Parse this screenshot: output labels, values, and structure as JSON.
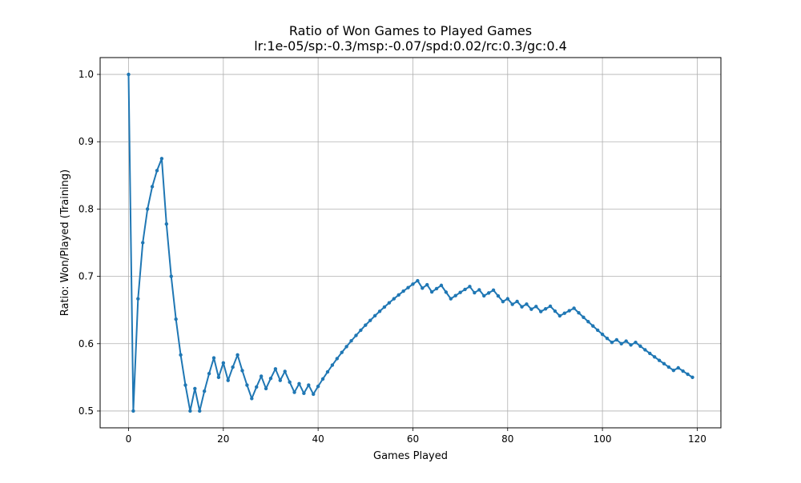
{
  "chart_data": {
    "type": "line",
    "title": "Ratio of Won Games to Played Games",
    "subtitle": "lr:1e-05/sp:-0.3/msp:-0.07/spd:0.02/rc:0.3/gc:0.4",
    "xlabel": "Games Played",
    "ylabel": "Ratio: Won/Played (Training)",
    "xlim": [
      -6,
      125
    ],
    "ylim": [
      0.475,
      1.025
    ],
    "xticks": [
      0,
      20,
      40,
      60,
      80,
      100,
      120
    ],
    "yticks": [
      0.5,
      0.6,
      0.7,
      0.8,
      0.9,
      1.0
    ],
    "xtick_labels": [
      "0",
      "20",
      "40",
      "60",
      "80",
      "100",
      "120"
    ],
    "ytick_labels": [
      "0.5",
      "0.6",
      "0.7",
      "0.8",
      "0.9",
      "1.0"
    ],
    "grid": true,
    "line_color": "#1f77b4",
    "grid_color": "#b0b0b0",
    "x": [
      0,
      1,
      2,
      3,
      4,
      5,
      6,
      7,
      8,
      9,
      10,
      11,
      12,
      13,
      14,
      15,
      16,
      17,
      18,
      19,
      20,
      21,
      22,
      23,
      24,
      25,
      26,
      27,
      28,
      29,
      30,
      31,
      32,
      33,
      34,
      35,
      36,
      37,
      38,
      39,
      40,
      41,
      42,
      43,
      44,
      45,
      46,
      47,
      48,
      49,
      50,
      51,
      52,
      53,
      54,
      55,
      56,
      57,
      58,
      59,
      60,
      61,
      62,
      63,
      64,
      65,
      66,
      67,
      68,
      69,
      70,
      71,
      72,
      73,
      74,
      75,
      76,
      77,
      78,
      79,
      80,
      81,
      82,
      83,
      84,
      85,
      86,
      87,
      88,
      89,
      90,
      91,
      92,
      93,
      94,
      95,
      96,
      97,
      98,
      99,
      100,
      101,
      102,
      103,
      104,
      105,
      106,
      107,
      108,
      109,
      110,
      111,
      112,
      113,
      114,
      115,
      116,
      117,
      118,
      119
    ],
    "values": [
      1.0,
      0.5,
      0.6667,
      0.75,
      0.8,
      0.8333,
      0.8571,
      0.875,
      0.7778,
      0.7,
      0.6364,
      0.5833,
      0.5385,
      0.5,
      0.5333,
      0.5,
      0.5294,
      0.5556,
      0.5789,
      0.55,
      0.5714,
      0.5455,
      0.5652,
      0.5833,
      0.56,
      0.5385,
      0.5185,
      0.5357,
      0.5517,
      0.5333,
      0.5484,
      0.5625,
      0.5455,
      0.5588,
      0.5429,
      0.5278,
      0.5405,
      0.5263,
      0.5385,
      0.525,
      0.5366,
      0.5476,
      0.5581,
      0.5682,
      0.5778,
      0.587,
      0.5957,
      0.6042,
      0.6122,
      0.62,
      0.6275,
      0.6346,
      0.6415,
      0.6481,
      0.6545,
      0.6607,
      0.6667,
      0.6724,
      0.678,
      0.6833,
      0.6885,
      0.6935,
      0.6825,
      0.6875,
      0.6769,
      0.6818,
      0.6866,
      0.6765,
      0.6667,
      0.6714,
      0.6761,
      0.6806,
      0.6849,
      0.6757,
      0.68,
      0.6711,
      0.6753,
      0.6795,
      0.6709,
      0.6625,
      0.6667,
      0.6585,
      0.6627,
      0.6548,
      0.6588,
      0.6512,
      0.6552,
      0.6477,
      0.6517,
      0.6556,
      0.6484,
      0.6413,
      0.6452,
      0.6489,
      0.6526,
      0.6458,
      0.6392,
      0.6327,
      0.6263,
      0.62,
      0.6139,
      0.6078,
      0.6019,
      0.6058,
      0.6,
      0.6038,
      0.5981,
      0.6019,
      0.5963,
      0.5909,
      0.5856,
      0.5804,
      0.5752,
      0.5702,
      0.5652,
      0.5603,
      0.5641,
      0.5593,
      0.5546,
      0.55
    ]
  }
}
